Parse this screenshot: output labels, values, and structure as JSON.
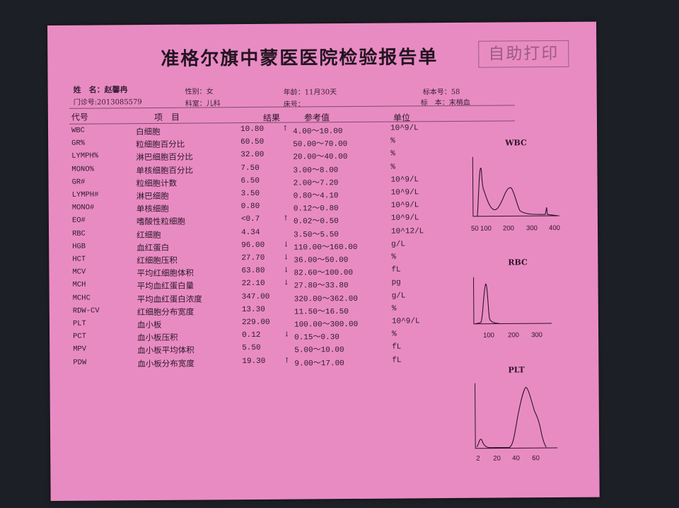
{
  "report": {
    "title": "准格尔旗中蒙医医院检验报告单",
    "stamp": "自助打印",
    "patient": {
      "name": "姓　名：赵馨冉",
      "clinic_no": "门诊号:2013085579",
      "sex": "性别：女",
      "dept": "科室：儿科",
      "age": "年龄：11月30天",
      "bed": "床号：",
      "sample_no": "标本号：58",
      "sample": "标　本：末梢血"
    },
    "columns": {
      "code": "代号",
      "item": "项　目",
      "result": "结果",
      "ref": "参考值",
      "unit": "单位"
    },
    "rows": [
      {
        "code": "WBC",
        "item": "白细胞",
        "result": "10.80",
        "flag": "↑",
        "ref": "4.00～10.00",
        "unit": "10^9/L"
      },
      {
        "code": "GR%",
        "item": "粒细胞百分比",
        "result": "60.50",
        "flag": "",
        "ref": "50.00～70.00",
        "unit": "%"
      },
      {
        "code": "LYMPH%",
        "item": "淋巴细胞百分比",
        "result": "32.00",
        "flag": "",
        "ref": "20.00～40.00",
        "unit": "%"
      },
      {
        "code": "MONO%",
        "item": "单核细胞百分比",
        "result": "7.50",
        "flag": "",
        "ref": "3.00～8.00",
        "unit": "%"
      },
      {
        "code": "GR#",
        "item": "粒细胞计数",
        "result": "6.50",
        "flag": "",
        "ref": "2.00～7.20",
        "unit": "10^9/L"
      },
      {
        "code": "LYMPH#",
        "item": "淋巴细胞",
        "result": "3.50",
        "flag": "",
        "ref": "0.80～4.10",
        "unit": "10^9/L"
      },
      {
        "code": "MONO#",
        "item": "单核细胞",
        "result": "0.80",
        "flag": "",
        "ref": "0.12～0.80",
        "unit": "10^9/L"
      },
      {
        "code": "EO#",
        "item": "嗜酸性粒细胞",
        "result": "<0.7",
        "flag": "↑",
        "ref": "0.02～0.50",
        "unit": "10^9/L"
      },
      {
        "code": "RBC",
        "item": "红细胞",
        "result": "4.34",
        "flag": "",
        "ref": "3.50～5.50",
        "unit": "10^12/L"
      },
      {
        "code": "HGB",
        "item": "血红蛋白",
        "result": "96.00",
        "flag": "↓",
        "ref": "110.00～160.00",
        "unit": "g/L"
      },
      {
        "code": "HCT",
        "item": "红细胞压积",
        "result": "27.70",
        "flag": "↓",
        "ref": "36.00～50.00",
        "unit": "%"
      },
      {
        "code": "MCV",
        "item": "平均红细胞体积",
        "result": "63.80",
        "flag": "↓",
        "ref": "82.60～100.00",
        "unit": "fL"
      },
      {
        "code": "MCH",
        "item": "平均血红蛋白量",
        "result": "22.10",
        "flag": "↓",
        "ref": "27.80～33.80",
        "unit": "pg"
      },
      {
        "code": "MCHC",
        "item": "平均血红蛋白浓度",
        "result": "347.00",
        "flag": "",
        "ref": "320.00～362.00",
        "unit": "g/L"
      },
      {
        "code": "RDW-CV",
        "item": "红细胞分布宽度",
        "result": "13.30",
        "flag": "",
        "ref": "11.50～16.50",
        "unit": "%"
      },
      {
        "code": "PLT",
        "item": "血小板",
        "result": "229.00",
        "flag": "",
        "ref": "100.00～300.00",
        "unit": "10^9/L"
      },
      {
        "code": "PCT",
        "item": "血小板压积",
        "result": "0.12",
        "flag": "↓",
        "ref": "0.15～0.30",
        "unit": "%"
      },
      {
        "code": "MPV",
        "item": "血小板平均体积",
        "result": "5.50",
        "flag": "",
        "ref": "5.00～10.00",
        "unit": "fL"
      },
      {
        "code": "PDW",
        "item": "血小板分布宽度",
        "result": "19.30",
        "flag": "↑",
        "ref": "9.00～17.00",
        "unit": "fL"
      }
    ],
    "histograms": {
      "wbc": {
        "title": "WBC",
        "ticks": [
          "50",
          "100",
          "200",
          "300",
          "400"
        ]
      },
      "rbc": {
        "title": "RBC",
        "ticks": [
          "100",
          "200",
          "300"
        ]
      },
      "plt": {
        "title": "PLT",
        "ticks": [
          "2",
          "20",
          "40",
          "60"
        ]
      }
    }
  }
}
